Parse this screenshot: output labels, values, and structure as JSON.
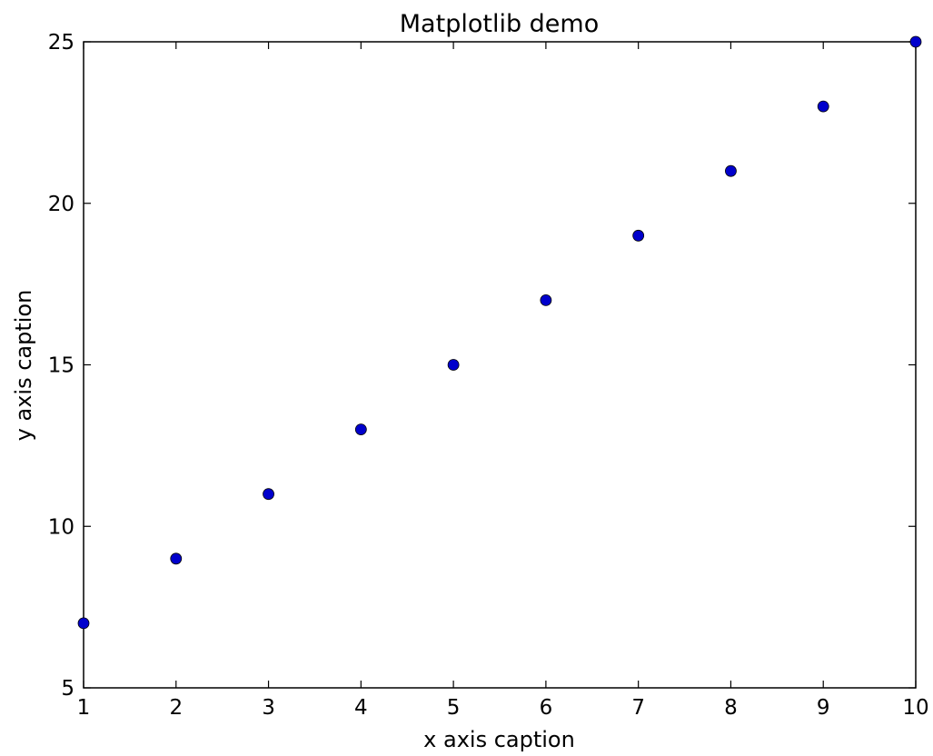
{
  "chart_data": {
    "type": "scatter",
    "title": "Matplotlib demo",
    "xlabel": "x axis caption",
    "ylabel": "y axis caption",
    "xlim": [
      1,
      10
    ],
    "ylim": [
      5,
      25
    ],
    "x_ticks": [
      1,
      2,
      3,
      4,
      5,
      6,
      7,
      8,
      9,
      10
    ],
    "y_ticks": [
      5,
      10,
      15,
      20,
      25
    ],
    "grid": false,
    "legend": "none",
    "series": [
      {
        "x": [
          1,
          2,
          3,
          4,
          5,
          6,
          7,
          8,
          9,
          10
        ],
        "y": [
          7,
          9,
          11,
          13,
          15,
          17,
          19,
          21,
          23,
          25
        ],
        "color": "#0000cc"
      }
    ]
  }
}
